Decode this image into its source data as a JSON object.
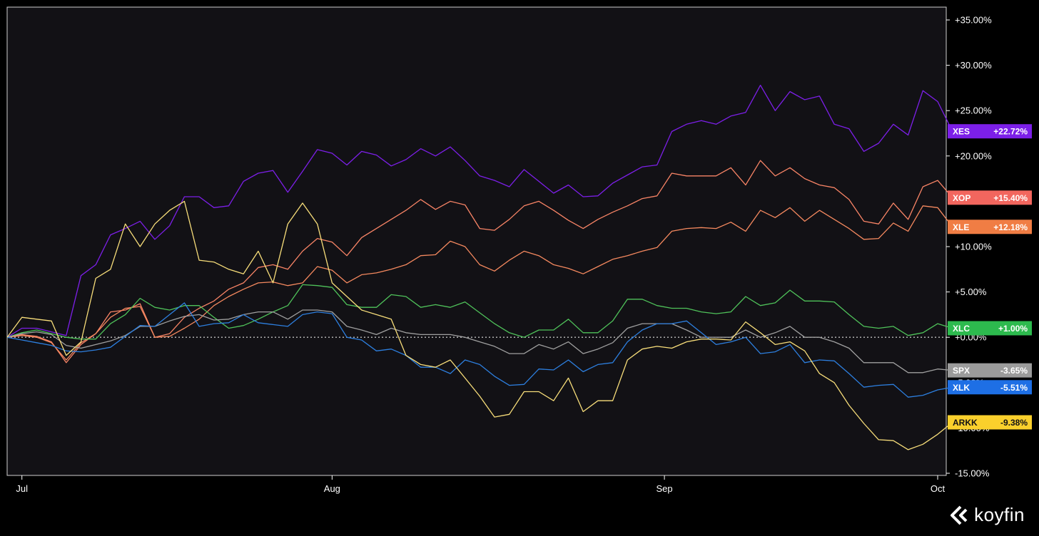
{
  "brand": {
    "name": "koyfin",
    "icon": "koyfin-logo-icon"
  },
  "colors": {
    "background": "#121115",
    "frame": "#d0d0d0",
    "zero_line": "#bfbfbf"
  },
  "chart_data": {
    "type": "line",
    "grid": false,
    "legend": "right-badges",
    "ylim": [
      -15,
      35
    ],
    "y_ticks": [
      35,
      30,
      25,
      20,
      10,
      5,
      0,
      -15
    ],
    "y_tick_labels": [
      "+35.00%",
      "+30.00%",
      "+25.00%",
      "+20.00%",
      "+10.00%",
      "+5.00%",
      "+0.00%",
      "-15.00%"
    ],
    "xlim": [
      0,
      63
    ],
    "x_ticks": [
      1,
      22,
      44.5,
      63
    ],
    "x_tick_labels": [
      "Jul",
      "Aug",
      "Sep",
      "Oct"
    ],
    "series": [
      {
        "name": "XES",
        "badge_value": "+22.72%",
        "color": "#7c1fe8",
        "badge_color": "#7c1fe8",
        "badge_text_color": "#ffffff",
        "values": [
          0.0,
          1.0,
          1.0,
          0.6,
          0.2,
          6.8,
          8.0,
          11.3,
          12.0,
          12.8,
          10.8,
          12.3,
          15.5,
          15.5,
          14.3,
          14.5,
          17.2,
          18.1,
          18.4,
          16.0,
          18.3,
          20.7,
          20.3,
          19.0,
          20.5,
          20.1,
          18.9,
          19.6,
          20.8,
          20.0,
          21.0,
          19.5,
          17.8,
          17.3,
          16.6,
          18.5,
          17.2,
          15.9,
          16.8,
          15.5,
          15.6,
          17.0,
          17.9,
          18.8,
          19.0,
          22.7,
          23.5,
          23.9,
          23.5,
          24.4,
          24.8,
          27.8,
          25.0,
          27.1,
          26.2,
          26.6,
          23.5,
          23.0,
          20.5,
          21.4,
          23.5,
          22.3,
          27.2,
          26.0,
          22.72
        ]
      },
      {
        "name": "XOP",
        "badge_value": "+15.40%",
        "color": "#f88466",
        "badge_color": "#f2665e",
        "badge_text_color": "#ffffff",
        "values": [
          0.0,
          0.3,
          0.1,
          -0.5,
          -2.8,
          -0.8,
          0.4,
          2.8,
          3.0,
          3.7,
          0.0,
          0.4,
          2.2,
          3.2,
          4.0,
          5.3,
          6.0,
          7.7,
          8.0,
          7.5,
          9.5,
          10.9,
          10.5,
          9.0,
          11.0,
          12.0,
          13.0,
          14.0,
          15.2,
          14.1,
          15.0,
          14.6,
          12.0,
          11.8,
          13.0,
          14.5,
          15.0,
          14.0,
          12.9,
          12.0,
          13.0,
          13.8,
          14.5,
          15.3,
          15.6,
          18.1,
          17.8,
          17.8,
          17.8,
          18.7,
          16.8,
          19.5,
          17.8,
          18.7,
          17.5,
          16.8,
          16.5,
          15.2,
          12.8,
          12.5,
          14.8,
          13.0,
          16.6,
          17.3,
          15.4
        ]
      },
      {
        "name": "XLE",
        "badge_value": "+12.18%",
        "color": "#f5895f",
        "badge_color": "#f07d44",
        "badge_text_color": "#ffffff",
        "values": [
          0.0,
          0.2,
          0.0,
          -0.6,
          -2.5,
          -0.6,
          0.4,
          2.2,
          3.2,
          3.4,
          0.0,
          0.1,
          1.0,
          2.0,
          3.5,
          4.5,
          5.3,
          6.0,
          6.1,
          5.7,
          6.0,
          7.8,
          7.4,
          6.0,
          6.9,
          7.1,
          7.5,
          8.0,
          9.0,
          9.1,
          10.6,
          10.0,
          8.0,
          7.3,
          8.5,
          9.5,
          9.0,
          8.0,
          7.6,
          7.0,
          7.8,
          8.6,
          9.0,
          9.5,
          9.9,
          11.7,
          12.0,
          12.1,
          12.0,
          12.7,
          11.7,
          14.0,
          13.2,
          14.3,
          12.8,
          14.0,
          13.0,
          12.0,
          10.8,
          10.9,
          12.6,
          11.7,
          14.5,
          14.3,
          12.18
        ]
      },
      {
        "name": "XLC",
        "badge_value": "+1.00%",
        "color": "#4fc25a",
        "badge_color": "#2dba4e",
        "badge_text_color": "#ffffff",
        "values": [
          0.0,
          0.5,
          0.8,
          0.4,
          0.0,
          -0.2,
          -0.2,
          1.5,
          2.5,
          4.3,
          3.3,
          3.0,
          3.5,
          3.5,
          2.2,
          1.0,
          1.3,
          2.0,
          2.8,
          3.5,
          5.8,
          5.7,
          5.5,
          3.6,
          3.3,
          3.3,
          4.7,
          4.5,
          3.3,
          3.6,
          3.3,
          3.9,
          2.7,
          1.5,
          0.5,
          0.0,
          0.8,
          0.8,
          2.0,
          0.5,
          0.5,
          1.8,
          4.2,
          4.2,
          3.5,
          3.2,
          3.2,
          2.8,
          2.6,
          2.8,
          4.5,
          3.5,
          3.8,
          5.2,
          4.0,
          4.0,
          3.9,
          2.5,
          1.2,
          1.0,
          1.2,
          0.2,
          0.5,
          1.5,
          1.0
        ]
      },
      {
        "name": "SPX",
        "badge_value": "-3.65%",
        "color": "#a0a0a0",
        "badge_color": "#9b9b9b",
        "badge_text_color": "#ffffff",
        "values": [
          0.0,
          0.4,
          0.6,
          0.3,
          -0.9,
          -1.2,
          -0.8,
          -0.4,
          0.2,
          1.2,
          1.2,
          1.8,
          2.3,
          2.5,
          1.9,
          2.0,
          2.5,
          2.8,
          2.8,
          2.0,
          3.0,
          3.0,
          2.8,
          1.2,
          0.8,
          0.3,
          1.0,
          0.5,
          0.3,
          0.3,
          0.3,
          0.0,
          -0.5,
          -1.0,
          -1.8,
          -1.8,
          -0.8,
          -1.3,
          -0.5,
          -1.8,
          -1.3,
          -0.6,
          1.0,
          1.5,
          1.5,
          1.5,
          0.8,
          0.0,
          0.0,
          0.0,
          0.8,
          0.0,
          0.5,
          1.2,
          0.0,
          0.0,
          -0.5,
          -1.2,
          -2.8,
          -2.8,
          -2.8,
          -3.9,
          -3.9,
          -3.5,
          -3.65
        ]
      },
      {
        "name": "XLK",
        "badge_value": "-5.51%",
        "color": "#2d7fdf",
        "badge_color": "#1e6fe5",
        "badge_text_color": "#ffffff",
        "values": [
          0.0,
          -0.3,
          -0.6,
          -0.9,
          -1.5,
          -1.6,
          -1.4,
          -1.1,
          0.1,
          1.3,
          1.2,
          2.5,
          3.8,
          1.2,
          1.5,
          1.6,
          2.5,
          1.6,
          1.4,
          1.2,
          2.5,
          2.8,
          2.6,
          0.0,
          -0.3,
          -1.5,
          -1.3,
          -2.0,
          -3.3,
          -3.3,
          -4.0,
          -2.5,
          -3.0,
          -4.3,
          -5.3,
          -5.2,
          -3.5,
          -3.6,
          -2.5,
          -3.8,
          -3.0,
          -2.8,
          -0.5,
          0.8,
          1.5,
          1.5,
          1.8,
          0.5,
          -0.8,
          -0.5,
          0.0,
          -1.8,
          -1.6,
          -0.8,
          -2.8,
          -2.5,
          -2.6,
          -4.0,
          -5.5,
          -5.3,
          -5.2,
          -6.6,
          -6.4,
          -5.8,
          -5.51
        ]
      },
      {
        "name": "ARKK",
        "badge_value": "-9.38%",
        "color": "#f8de7a",
        "badge_color": "#fad02c",
        "badge_text_color": "#121115",
        "values": [
          0.0,
          2.2,
          2.0,
          1.8,
          -2.0,
          -0.5,
          6.5,
          7.5,
          12.5,
          10.0,
          12.5,
          14.0,
          15.0,
          8.5,
          8.3,
          7.5,
          7.0,
          9.5,
          6.0,
          12.5,
          14.8,
          12.5,
          6.0,
          4.5,
          3.0,
          2.5,
          2.0,
          -2.0,
          -3.0,
          -3.3,
          -2.5,
          -4.5,
          -6.5,
          -8.8,
          -8.5,
          -6.0,
          -6.0,
          -7.0,
          -4.5,
          -8.2,
          -7.0,
          -7.0,
          -2.5,
          -1.3,
          -1.0,
          -1.2,
          -0.5,
          -0.2,
          -0.2,
          -0.3,
          1.7,
          0.5,
          -0.8,
          -0.5,
          -1.5,
          -4.0,
          -5.0,
          -7.5,
          -9.5,
          -11.3,
          -11.4,
          -12.4,
          -11.8,
          -10.7,
          -9.38
        ]
      }
    ],
    "hidden_badge_remnants": [
      "-5.00%",
      "-10.00%"
    ]
  }
}
